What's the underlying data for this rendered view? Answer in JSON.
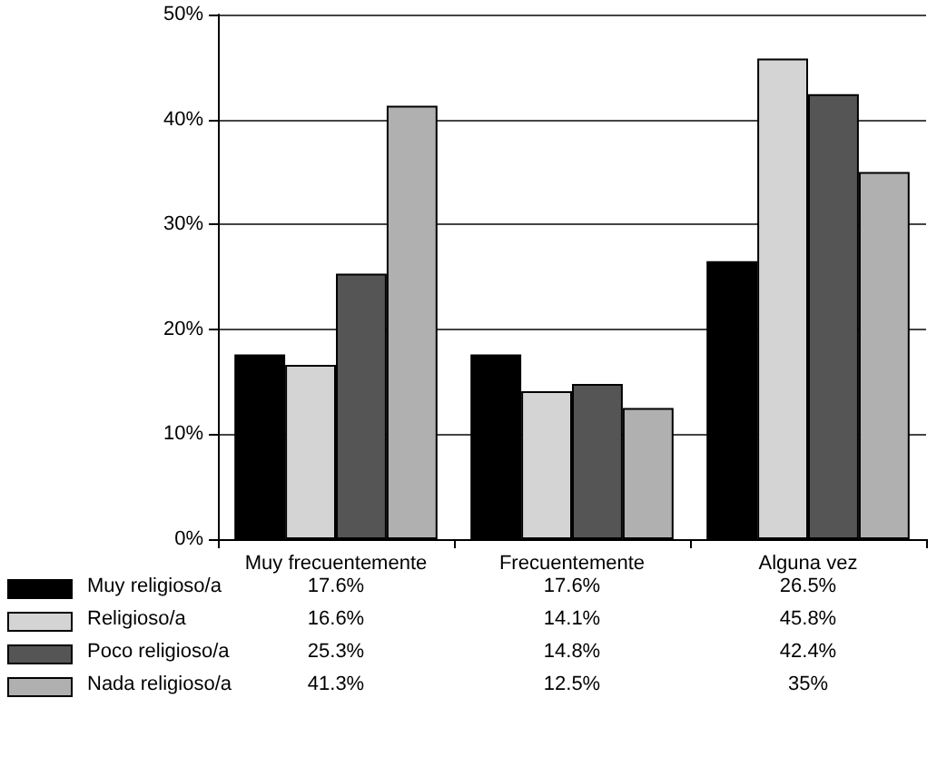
{
  "chart_data": {
    "type": "bar",
    "categories": [
      "Muy frecuentemente",
      "Frecuentemente",
      "Alguna vez"
    ],
    "series": [
      {
        "name": "Muy religioso/a",
        "color": "#000000",
        "values": [
          17.6,
          17.6,
          26.5
        ],
        "value_labels": [
          "17.6%",
          "17.6%",
          "26.5%"
        ]
      },
      {
        "name": "Religioso/a",
        "color": "#d4d4d4",
        "values": [
          16.6,
          14.1,
          45.8
        ],
        "value_labels": [
          "16.6%",
          "14.1%",
          "45.8%"
        ]
      },
      {
        "name": "Poco religioso/a",
        "color": "#555555",
        "values": [
          25.3,
          14.8,
          42.4
        ],
        "value_labels": [
          "25.3%",
          "14.8%",
          "42.4%"
        ]
      },
      {
        "name": "Nada religioso/a",
        "color": "#b0b0b0",
        "values": [
          41.3,
          12.5,
          35
        ],
        "value_labels": [
          "41.3%",
          "12.5%",
          "35%"
        ]
      }
    ],
    "ylim": [
      0,
      50
    ],
    "yticks": [
      {
        "value": 0,
        "label": "0%"
      },
      {
        "value": 10,
        "label": "10%"
      },
      {
        "value": 20,
        "label": "20%"
      },
      {
        "value": 30,
        "label": "30%"
      },
      {
        "value": 40,
        "label": "40%"
      },
      {
        "value": 50,
        "label": "50%"
      }
    ],
    "grid": "y",
    "legend": "bottom"
  }
}
